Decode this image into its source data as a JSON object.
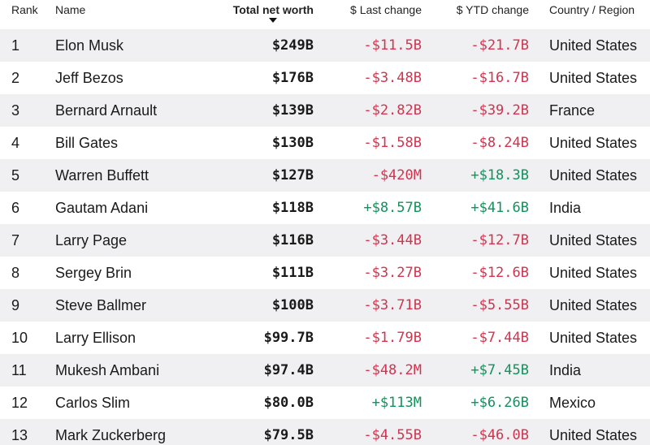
{
  "colors": {
    "negative": "#d0344e",
    "positive": "#14915c",
    "row_shade": "#f0f0f2"
  },
  "columns": {
    "rank": "Rank",
    "name": "Name",
    "net_worth": "Total net worth",
    "last_change": "$ Last change",
    "ytd_change": "$ YTD change",
    "country": "Country / Region"
  },
  "sort": {
    "column": "net_worth",
    "direction": "descending",
    "icon": "sort-down-icon"
  },
  "rows": [
    {
      "rank": "1",
      "name": "Elon Musk",
      "net_worth": "$249B",
      "last_change": "-$11.5B",
      "ytd_change": "-$21.7B",
      "country": "United States"
    },
    {
      "rank": "2",
      "name": "Jeff Bezos",
      "net_worth": "$176B",
      "last_change": "-$3.48B",
      "ytd_change": "-$16.7B",
      "country": "United States"
    },
    {
      "rank": "3",
      "name": "Bernard Arnault",
      "net_worth": "$139B",
      "last_change": "-$2.82B",
      "ytd_change": "-$39.2B",
      "country": "France"
    },
    {
      "rank": "4",
      "name": "Bill Gates",
      "net_worth": "$130B",
      "last_change": "-$1.58B",
      "ytd_change": "-$8.24B",
      "country": "United States"
    },
    {
      "rank": "5",
      "name": "Warren Buffett",
      "net_worth": "$127B",
      "last_change": "-$420M",
      "ytd_change": "+$18.3B",
      "country": "United States"
    },
    {
      "rank": "6",
      "name": "Gautam Adani",
      "net_worth": "$118B",
      "last_change": "+$8.57B",
      "ytd_change": "+$41.6B",
      "country": "India"
    },
    {
      "rank": "7",
      "name": "Larry Page",
      "net_worth": "$116B",
      "last_change": "-$3.44B",
      "ytd_change": "-$12.7B",
      "country": "United States"
    },
    {
      "rank": "8",
      "name": "Sergey Brin",
      "net_worth": "$111B",
      "last_change": "-$3.27B",
      "ytd_change": "-$12.6B",
      "country": "United States"
    },
    {
      "rank": "9",
      "name": "Steve Ballmer",
      "net_worth": "$100B",
      "last_change": "-$3.71B",
      "ytd_change": "-$5.55B",
      "country": "United States"
    },
    {
      "rank": "10",
      "name": "Larry Ellison",
      "net_worth": "$99.7B",
      "last_change": "-$1.79B",
      "ytd_change": "-$7.44B",
      "country": "United States"
    },
    {
      "rank": "11",
      "name": "Mukesh Ambani",
      "net_worth": "$97.4B",
      "last_change": "-$48.2M",
      "ytd_change": "+$7.45B",
      "country": "India"
    },
    {
      "rank": "12",
      "name": "Carlos Slim",
      "net_worth": "$80.0B",
      "last_change": "+$113M",
      "ytd_change": "+$6.26B",
      "country": "Mexico"
    },
    {
      "rank": "13",
      "name": "Mark Zuckerberg",
      "net_worth": "$79.5B",
      "last_change": "-$4.55B",
      "ytd_change": "-$46.0B",
      "country": "United States"
    }
  ]
}
